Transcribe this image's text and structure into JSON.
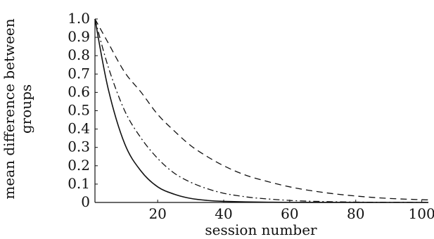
{
  "chart_data": {
    "type": "line",
    "title": "",
    "xlabel": "session number",
    "ylabel_lines": [
      "mean difference between",
      "groups"
    ],
    "xlim": [
      1,
      102
    ],
    "ylim": [
      0,
      1.0
    ],
    "x_ticks": [
      20,
      40,
      60,
      80,
      100
    ],
    "y_ticks": [
      0,
      0.1,
      0.2,
      0.3,
      0.4,
      0.5,
      0.6,
      0.7,
      0.8,
      0.9,
      1.0
    ],
    "y_tick_labels": [
      "0",
      "0.1",
      "0.2",
      "0.3",
      "0.4",
      "0.5",
      "0.6",
      "0.7",
      "0.8",
      "0.9",
      "1.0"
    ],
    "grid": false,
    "legend": "none",
    "series": [
      {
        "style": "solid",
        "x": [
          1,
          5,
          10,
          15,
          20,
          25,
          30,
          35,
          40,
          50,
          60,
          70,
          80,
          90,
          100,
          102
        ],
        "y": [
          1.0,
          0.62,
          0.32,
          0.17,
          0.085,
          0.045,
          0.022,
          0.011,
          0.006,
          0.002,
          0.0005,
          0.0002,
          0.0001,
          0.0,
          0.0,
          0.0
        ]
      },
      {
        "style": "dash-dot",
        "x": [
          1,
          5,
          10,
          15,
          20,
          25,
          30,
          35,
          40,
          45,
          50,
          60,
          70,
          80,
          90,
          100,
          102
        ],
        "y": [
          1.0,
          0.74,
          0.5,
          0.35,
          0.24,
          0.16,
          0.11,
          0.075,
          0.05,
          0.035,
          0.024,
          0.011,
          0.005,
          0.002,
          0.001,
          0.0005,
          0.0004
        ]
      },
      {
        "style": "dashed",
        "x": [
          1,
          5,
          10,
          15,
          20,
          25,
          30,
          35,
          40,
          45,
          50,
          60,
          70,
          80,
          90,
          100,
          102
        ],
        "y": [
          1.0,
          0.87,
          0.71,
          0.6,
          0.48,
          0.39,
          0.31,
          0.25,
          0.2,
          0.16,
          0.13,
          0.085,
          0.055,
          0.035,
          0.022,
          0.015,
          0.014
        ]
      }
    ]
  }
}
